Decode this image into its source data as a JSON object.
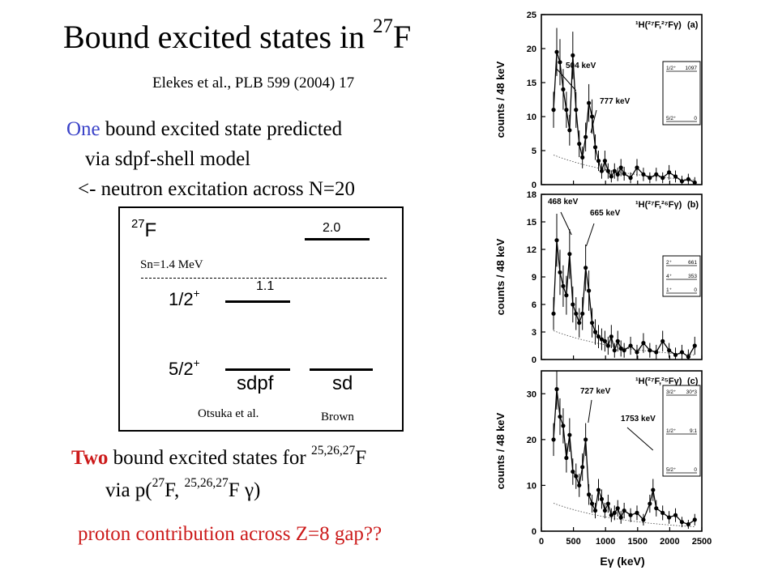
{
  "slide": {
    "title_main": "Bound excited states in ",
    "title_mass": "27",
    "title_el": "F",
    "citation": "Elekes et al., PLB 599 (2004) 17",
    "line1_highlight": "One",
    "line1_rest": " bound excited state predicted",
    "line2": "via sdpf-shell model",
    "line3": "<- neutron excitation across N=20"
  },
  "level_scheme": {
    "nucleus_mass": "27",
    "nucleus_el": "F",
    "sn_label": "Sn=1.4 MeV",
    "sdpf_excited_energy": "1.1",
    "sd_excited_energy": "2.0",
    "jpi_excited": "1/2",
    "jpi_excited_parity": "+",
    "jpi_ground": "5/2",
    "jpi_ground_parity": "+",
    "col1_label": "sdpf",
    "col2_label": "sd",
    "col1_author": "Otsuka et al.",
    "col2_author": "Brown"
  },
  "bottom": {
    "two": "Two",
    "l1_rest": " bound excited states for ",
    "l1_sup": "25,26,27",
    "l1_el": "F",
    "l2_a": "via p(",
    "l2_sup1": "27",
    "l2_b": "F, ",
    "l2_sup2": "25,26,27",
    "l2_c": "F ",
    "l2_gamma": "γ",
    "l2_d": ")",
    "l3": "proton contribution across Z=8 gap??"
  },
  "figure": {
    "y_axis_label": "counts / 48 keV",
    "x_axis_label": "Eγ (keV)",
    "x_ticks": [
      "0",
      "500",
      "1000",
      "1500",
      "2000",
      "2500"
    ],
    "panels": [
      {
        "reaction": "¹H(²⁷F,²⁷Fγ)",
        "tag": "(a)",
        "y_ticks": [
          "0",
          "5",
          "10",
          "15",
          "20",
          "25"
        ],
        "peaks": [
          "504 keV",
          "777 keV"
        ],
        "inset_rows": [
          [
            "1/2⁺",
            "1097"
          ],
          [
            "5/2⁺",
            "0"
          ]
        ]
      },
      {
        "reaction": "¹H(²⁷F,²⁶Fγ)",
        "tag": "(b)",
        "y_ticks": [
          "0",
          "3",
          "6",
          "9",
          "12",
          "15",
          "18"
        ],
        "peaks": [
          "468 keV",
          "665 keV"
        ],
        "inset_rows": [
          [
            "2⁺",
            "661"
          ],
          [
            "4⁺",
            "353"
          ],
          [
            "1⁺",
            "0"
          ]
        ]
      },
      {
        "reaction": "¹H(²⁷F,²⁵Fγ)",
        "tag": "(c)",
        "y_ticks": [
          "0",
          "10",
          "20",
          "30"
        ],
        "peaks": [
          "727 keV",
          "1753 keV"
        ],
        "inset_rows": [
          [
            "3/2⁺",
            "30*3"
          ],
          [
            "1/2⁺",
            "9:1"
          ],
          [
            "5/2⁺",
            "0"
          ]
        ]
      }
    ]
  },
  "chart_data": [
    {
      "type": "scatter",
      "title": "¹H(²⁷F,²⁷Fγ) (a)",
      "xlabel": "Eγ (keV)",
      "ylabel": "counts / 48 keV",
      "xlim": [
        0,
        2500
      ],
      "ylim": [
        0,
        25
      ],
      "x": [
        190,
        240,
        290,
        340,
        390,
        440,
        490,
        540,
        590,
        640,
        690,
        740,
        790,
        840,
        890,
        940,
        990,
        1040,
        1090,
        1140,
        1190,
        1240,
        1290,
        1390,
        1490,
        1590,
        1690,
        1790,
        1890,
        1990,
        2090,
        2190,
        2290,
        2390
      ],
      "y": [
        11,
        19.5,
        18,
        14,
        11,
        8,
        19,
        11,
        6,
        4,
        7,
        12,
        10,
        5.5,
        3.5,
        2,
        3.5,
        2,
        1.2,
        2,
        1.5,
        2.5,
        1.6,
        1,
        2.5,
        1.5,
        1,
        1.5,
        1,
        1.8,
        1.2,
        0.5,
        0.8,
        0.3
      ]
    },
    {
      "type": "scatter",
      "title": "¹H(²⁷F,²⁶Fγ) (b)",
      "xlabel": "Eγ (keV)",
      "ylabel": "counts / 48 keV",
      "xlim": [
        0,
        2500
      ],
      "ylim": [
        0,
        18
      ],
      "x": [
        190,
        240,
        290,
        340,
        390,
        440,
        490,
        540,
        590,
        640,
        690,
        740,
        790,
        840,
        890,
        940,
        990,
        1040,
        1090,
        1140,
        1190,
        1240,
        1290,
        1390,
        1490,
        1590,
        1690,
        1790,
        1890,
        1990,
        2090,
        2190,
        2290,
        2390
      ],
      "y": [
        5,
        13,
        9.5,
        8,
        7,
        11.5,
        6,
        5,
        4,
        5,
        10,
        7.5,
        4,
        3,
        2.5,
        2.2,
        2,
        1.5,
        2.5,
        1,
        2,
        1.2,
        1,
        1.5,
        0.8,
        1.8,
        1,
        0.8,
        2,
        1,
        0.5,
        0.8,
        0.3,
        1.5
      ]
    },
    {
      "type": "scatter",
      "title": "¹H(²⁷F,²⁵Fγ) (c)",
      "xlabel": "Eγ (keV)",
      "ylabel": "counts / 48 keV",
      "xlim": [
        0,
        2500
      ],
      "ylim": [
        0,
        35
      ],
      "x": [
        190,
        240,
        290,
        340,
        390,
        440,
        490,
        540,
        590,
        640,
        690,
        740,
        790,
        840,
        890,
        940,
        990,
        1040,
        1090,
        1140,
        1190,
        1240,
        1290,
        1390,
        1490,
        1590,
        1690,
        1740,
        1790,
        1890,
        1990,
        2090,
        2190,
        2290,
        2390
      ],
      "y": [
        20,
        31,
        25,
        23,
        16,
        21,
        13,
        12,
        10,
        14,
        20,
        8,
        6,
        4.5,
        9,
        7,
        4.5,
        6,
        3.5,
        4,
        5,
        3,
        4.5,
        3.5,
        4,
        2.5,
        6,
        9,
        5,
        4,
        3,
        3.5,
        2,
        1.5,
        2.5
      ]
    }
  ]
}
